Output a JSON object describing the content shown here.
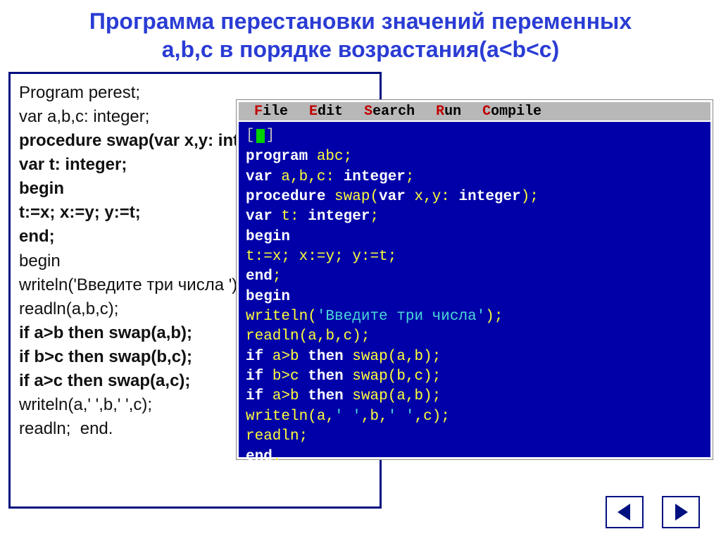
{
  "title_line1": "Программа перестановки значений переменных",
  "title_line2": "a,b,c в порядке возрастания(a<b<c)",
  "colors": {
    "title": "#2a3cd4",
    "frame_border": "#001080",
    "ide_bg": "#0000a8",
    "ide_menubar": "#b8b8b8",
    "ide_hotkey": "#c00000",
    "ide_keyword": "#ffffff",
    "ide_identifier": "#ffff3a",
    "ide_string": "#4ad8d8",
    "ide_cursor": "#00d000"
  },
  "left_code": [
    {
      "text": "Program perest;",
      "bold": false
    },
    {
      "text": "var a,b,c: integer;",
      "bold": false
    },
    {
      "text": "procedure swap(var x,y: integer);",
      "bold": true
    },
    {
      "text": "var t: integer;",
      "bold": true
    },
    {
      "text": "begin",
      "bold": true
    },
    {
      "text": "t:=x; x:=y; y:=t;",
      "bold": true
    },
    {
      "text": "end;",
      "bold": true
    },
    {
      "text": "begin",
      "bold": false
    },
    {
      "text": "writeln('Введите три числа ');",
      "bold": false
    },
    {
      "text": "readln(a,b,c);",
      "bold": false
    },
    {
      "text": "if a>b then swap(a,b);",
      "bold": true
    },
    {
      "text": "if b>c then swap(b,c);",
      "bold": true
    },
    {
      "text": "if a>c then swap(a,c);",
      "bold": true
    },
    {
      "text": "writeln(a,' ',b,' ',c);",
      "bold": false
    },
    {
      "text": "readln;  end.",
      "bold": false
    }
  ],
  "ide": {
    "menu": [
      {
        "hot": "F",
        "rest": "ile"
      },
      {
        "hot": "E",
        "rest": "dit"
      },
      {
        "hot": "S",
        "rest": "earch"
      },
      {
        "hot": "R",
        "rest": "un"
      },
      {
        "hot": "C",
        "rest": "ompile"
      }
    ],
    "topbar_left": "[",
    "topbar_right": "]",
    "lines": [
      [
        {
          "c": "kw",
          "t": "program"
        },
        {
          "c": "id",
          "t": " abc"
        },
        {
          "c": "sym",
          "t": ";"
        }
      ],
      [
        {
          "c": "kw",
          "t": "var"
        },
        {
          "c": "id",
          "t": " a"
        },
        {
          "c": "sym",
          "t": ","
        },
        {
          "c": "id",
          "t": "b"
        },
        {
          "c": "sym",
          "t": ","
        },
        {
          "c": "id",
          "t": "c"
        },
        {
          "c": "sym",
          "t": ": "
        },
        {
          "c": "kw",
          "t": "integer"
        },
        {
          "c": "sym",
          "t": ";"
        }
      ],
      [
        {
          "c": "kw",
          "t": "procedure"
        },
        {
          "c": "id",
          "t": " swap"
        },
        {
          "c": "sym",
          "t": "("
        },
        {
          "c": "kw",
          "t": "var"
        },
        {
          "c": "id",
          "t": " x"
        },
        {
          "c": "sym",
          "t": ","
        },
        {
          "c": "id",
          "t": "y"
        },
        {
          "c": "sym",
          "t": ": "
        },
        {
          "c": "kw",
          "t": "integer"
        },
        {
          "c": "sym",
          "t": ");"
        }
      ],
      [
        {
          "c": "kw",
          "t": "var"
        },
        {
          "c": "id",
          "t": " t"
        },
        {
          "c": "sym",
          "t": ": "
        },
        {
          "c": "kw",
          "t": "integer"
        },
        {
          "c": "sym",
          "t": ";"
        }
      ],
      [
        {
          "c": "kw",
          "t": "begin"
        }
      ],
      [
        {
          "c": "id",
          "t": "t"
        },
        {
          "c": "sym",
          "t": ":="
        },
        {
          "c": "id",
          "t": "x"
        },
        {
          "c": "sym",
          "t": "; "
        },
        {
          "c": "id",
          "t": "x"
        },
        {
          "c": "sym",
          "t": ":="
        },
        {
          "c": "id",
          "t": "y"
        },
        {
          "c": "sym",
          "t": "; "
        },
        {
          "c": "id",
          "t": "y"
        },
        {
          "c": "sym",
          "t": ":="
        },
        {
          "c": "id",
          "t": "t"
        },
        {
          "c": "sym",
          "t": ";"
        }
      ],
      [
        {
          "c": "kw",
          "t": "end"
        },
        {
          "c": "sym",
          "t": ";"
        }
      ],
      [
        {
          "c": "kw",
          "t": "begin"
        }
      ],
      [
        {
          "c": "id",
          "t": "writeln"
        },
        {
          "c": "sym",
          "t": "("
        },
        {
          "c": "str",
          "t": "'Введите три числа'"
        },
        {
          "c": "sym",
          "t": ");"
        }
      ],
      [
        {
          "c": "id",
          "t": "readln"
        },
        {
          "c": "sym",
          "t": "("
        },
        {
          "c": "id",
          "t": "a"
        },
        {
          "c": "sym",
          "t": ","
        },
        {
          "c": "id",
          "t": "b"
        },
        {
          "c": "sym",
          "t": ","
        },
        {
          "c": "id",
          "t": "c"
        },
        {
          "c": "sym",
          "t": ");"
        }
      ],
      [
        {
          "c": "kw",
          "t": "if"
        },
        {
          "c": "id",
          "t": " a"
        },
        {
          "c": "sym",
          "t": ">"
        },
        {
          "c": "id",
          "t": "b "
        },
        {
          "c": "kw",
          "t": "then"
        },
        {
          "c": "id",
          "t": " swap"
        },
        {
          "c": "sym",
          "t": "("
        },
        {
          "c": "id",
          "t": "a"
        },
        {
          "c": "sym",
          "t": ","
        },
        {
          "c": "id",
          "t": "b"
        },
        {
          "c": "sym",
          "t": ");"
        }
      ],
      [
        {
          "c": "kw",
          "t": "if"
        },
        {
          "c": "id",
          "t": " b"
        },
        {
          "c": "sym",
          "t": ">"
        },
        {
          "c": "id",
          "t": "c "
        },
        {
          "c": "kw",
          "t": "then"
        },
        {
          "c": "id",
          "t": " swap"
        },
        {
          "c": "sym",
          "t": "("
        },
        {
          "c": "id",
          "t": "b"
        },
        {
          "c": "sym",
          "t": ","
        },
        {
          "c": "id",
          "t": "c"
        },
        {
          "c": "sym",
          "t": ");"
        }
      ],
      [
        {
          "c": "kw",
          "t": "if"
        },
        {
          "c": "id",
          "t": " a"
        },
        {
          "c": "sym",
          "t": ">"
        },
        {
          "c": "id",
          "t": "b "
        },
        {
          "c": "kw",
          "t": "then"
        },
        {
          "c": "id",
          "t": " swap"
        },
        {
          "c": "sym",
          "t": "("
        },
        {
          "c": "id",
          "t": "a"
        },
        {
          "c": "sym",
          "t": ","
        },
        {
          "c": "id",
          "t": "b"
        },
        {
          "c": "sym",
          "t": ");"
        }
      ],
      [
        {
          "c": "id",
          "t": "writeln"
        },
        {
          "c": "sym",
          "t": "("
        },
        {
          "c": "id",
          "t": "a"
        },
        {
          "c": "sym",
          "t": ","
        },
        {
          "c": "str",
          "t": "' '"
        },
        {
          "c": "sym",
          "t": ","
        },
        {
          "c": "id",
          "t": "b"
        },
        {
          "c": "sym",
          "t": ","
        },
        {
          "c": "str",
          "t": "' '"
        },
        {
          "c": "sym",
          "t": ","
        },
        {
          "c": "id",
          "t": "c"
        },
        {
          "c": "sym",
          "t": ");"
        }
      ],
      [
        {
          "c": "id",
          "t": "readln"
        },
        {
          "c": "sym",
          "t": ";"
        }
      ],
      [
        {
          "c": "kw",
          "t": "end"
        },
        {
          "c": "sym",
          "t": "."
        }
      ]
    ]
  },
  "nav": {
    "prev_icon": "triangle-left",
    "next_icon": "triangle-right",
    "tri_color": "#001080"
  }
}
